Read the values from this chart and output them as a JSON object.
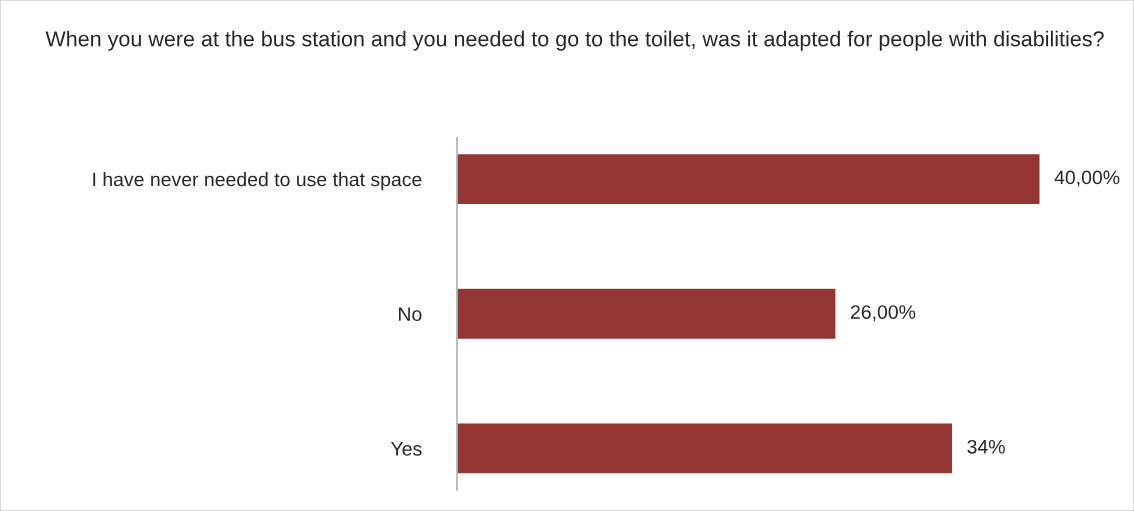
{
  "chart_data": {
    "type": "bar",
    "orientation": "horizontal",
    "title": "When you were at the bus station and you needed to go to the toilet, was it adapted for people with disabilities?",
    "categories": [
      "I have never needed to use that space",
      "No",
      "Yes"
    ],
    "values": [
      40,
      26,
      34
    ],
    "value_labels": [
      "40,00%",
      "26,00%",
      "34%"
    ],
    "color": "#943634",
    "grid": false,
    "legend": false,
    "tick_labels": "y"
  }
}
